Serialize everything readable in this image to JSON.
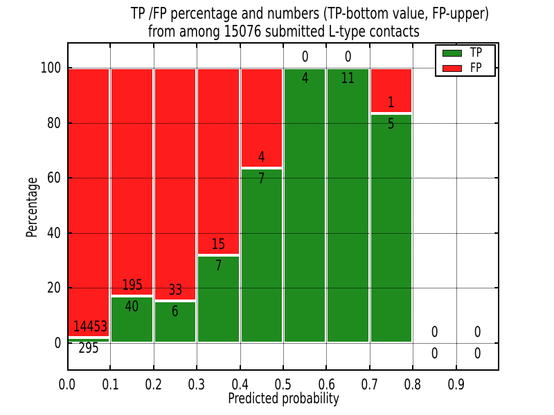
{
  "figure": {
    "title_line1": "TP /FP percentage and numbers (TP-bottom value, FP-upper)",
    "title_line2": "from among 15076 submitted L-type contacts"
  },
  "chart_data": {
    "type": "bar",
    "stacked": true,
    "title": "TP /FP percentage and numbers (TP-bottom value, FP-upper) from among 15076 submitted L-type contacts",
    "xlabel": "Predicted probability",
    "ylabel": "Percentage",
    "x_tick_labels": [
      "0.0",
      "0.1",
      "0.2",
      "0.3",
      "0.4",
      "0.5",
      "0.6",
      "0.7",
      "0.8",
      "0.9"
    ],
    "y_ticks": [
      0,
      20,
      40,
      60,
      80,
      100
    ],
    "xlim": [
      0.0,
      1.0
    ],
    "ylim": [
      -10,
      109
    ],
    "grid": "dotted",
    "legend_position": "upper right",
    "total_contacts": 15076,
    "series": [
      {
        "name": "TP",
        "color": "#1f8b1f",
        "role": "bottom segment, percentage of true positives"
      },
      {
        "name": "FP",
        "color": "#ff1c1c",
        "role": "upper segment, percentage of false positives"
      }
    ],
    "bins": [
      {
        "x_start": 0.0,
        "x_end": 0.1,
        "tp_count": 295,
        "fp_count": 14453
      },
      {
        "x_start": 0.1,
        "x_end": 0.2,
        "tp_count": 40,
        "fp_count": 195
      },
      {
        "x_start": 0.2,
        "x_end": 0.3,
        "tp_count": 6,
        "fp_count": 33
      },
      {
        "x_start": 0.3,
        "x_end": 0.4,
        "tp_count": 7,
        "fp_count": 15
      },
      {
        "x_start": 0.4,
        "x_end": 0.5,
        "tp_count": 7,
        "fp_count": 4
      },
      {
        "x_start": 0.5,
        "x_end": 0.6,
        "tp_count": 4,
        "fp_count": 0
      },
      {
        "x_start": 0.6,
        "x_end": 0.7,
        "tp_count": 11,
        "fp_count": 0
      },
      {
        "x_start": 0.7,
        "x_end": 0.8,
        "tp_count": 5,
        "fp_count": 1
      },
      {
        "x_start": 0.8,
        "x_end": 0.9,
        "tp_count": 0,
        "fp_count": 0
      },
      {
        "x_start": 0.9,
        "x_end": 1.0,
        "tp_count": 0,
        "fp_count": 0
      }
    ]
  },
  "colors": {
    "tp": "#1f8b1f",
    "fp": "#ff1c1c",
    "bar_edge": "#ffffff",
    "grid": "#000000",
    "text": "#000000",
    "background": "#ffffff"
  }
}
